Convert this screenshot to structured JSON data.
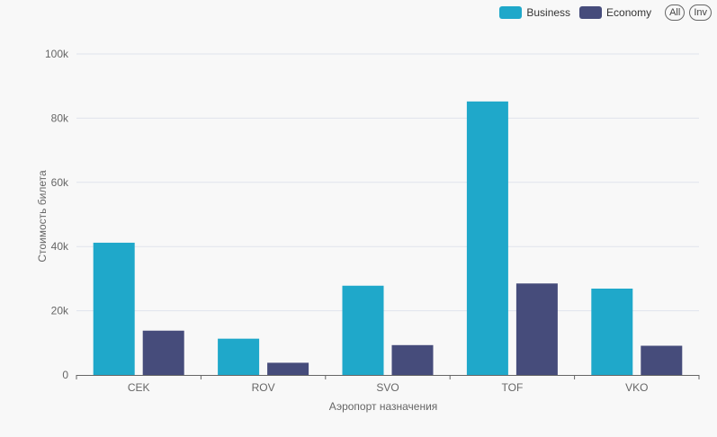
{
  "legend": {
    "all_label": "All",
    "inv_label": "Inv"
  },
  "colors": {
    "business": "#1fa8ca",
    "economy": "#464c7b",
    "grid": "#e0e3ec",
    "axis": "#666666",
    "text": "#666666"
  },
  "chart_data": {
    "type": "bar",
    "categories": [
      "CEK",
      "ROV",
      "SVO",
      "TOF",
      "VKO"
    ],
    "series": [
      {
        "name": "Business",
        "values": [
          41200,
          11300,
          27800,
          85200,
          26900
        ]
      },
      {
        "name": "Economy",
        "values": [
          13800,
          3800,
          9300,
          28500,
          9100
        ]
      }
    ],
    "xlabel": "Аэропорт назначения",
    "ylabel": "Стоимость билета",
    "ylim": [
      0,
      100000
    ],
    "yticks": [
      "0",
      "20k",
      "40k",
      "60k",
      "80k",
      "100k"
    ],
    "grid": true,
    "legend_position": "top-right"
  }
}
